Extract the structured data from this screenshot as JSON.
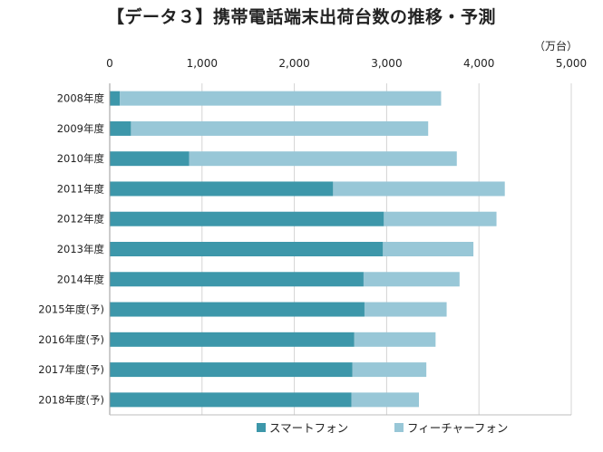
{
  "title": "【データ３】携帯電話端末出荷台数の推移・予測",
  "unit_label": "（万台）",
  "chart_data": {
    "type": "bar",
    "orientation": "horizontal",
    "stacked": true,
    "title": "【データ３】携帯電話端末出荷台数の推移・予測",
    "xlabel": "",
    "ylabel": "",
    "xlim": [
      0,
      5000
    ],
    "x_ticks": [
      "0",
      "1,000",
      "2,000",
      "3,000",
      "4,000",
      "5,000"
    ],
    "x_tick_values": [
      0,
      1000,
      2000,
      3000,
      4000,
      5000
    ],
    "grid": true,
    "legend_position": "bottom",
    "categories": [
      "2008年度",
      "2009年度",
      "2010年度",
      "2011年度",
      "2012年度",
      "2013年度",
      "2014年度",
      "2015年度(予)",
      "2016年度(予)",
      "2017年度(予)",
      "2018年度(予)"
    ],
    "series": [
      {
        "name": "スマートフォン",
        "color": "#3d97aa",
        "values": [
          110,
          230,
          860,
          2420,
          2970,
          2960,
          2750,
          2760,
          2650,
          2630,
          2620
        ]
      },
      {
        "name": "フィーチャーフォン",
        "color": "#98c7d7",
        "values": [
          3480,
          3220,
          2900,
          1860,
          1220,
          980,
          1040,
          890,
          880,
          800,
          730
        ]
      }
    ]
  }
}
